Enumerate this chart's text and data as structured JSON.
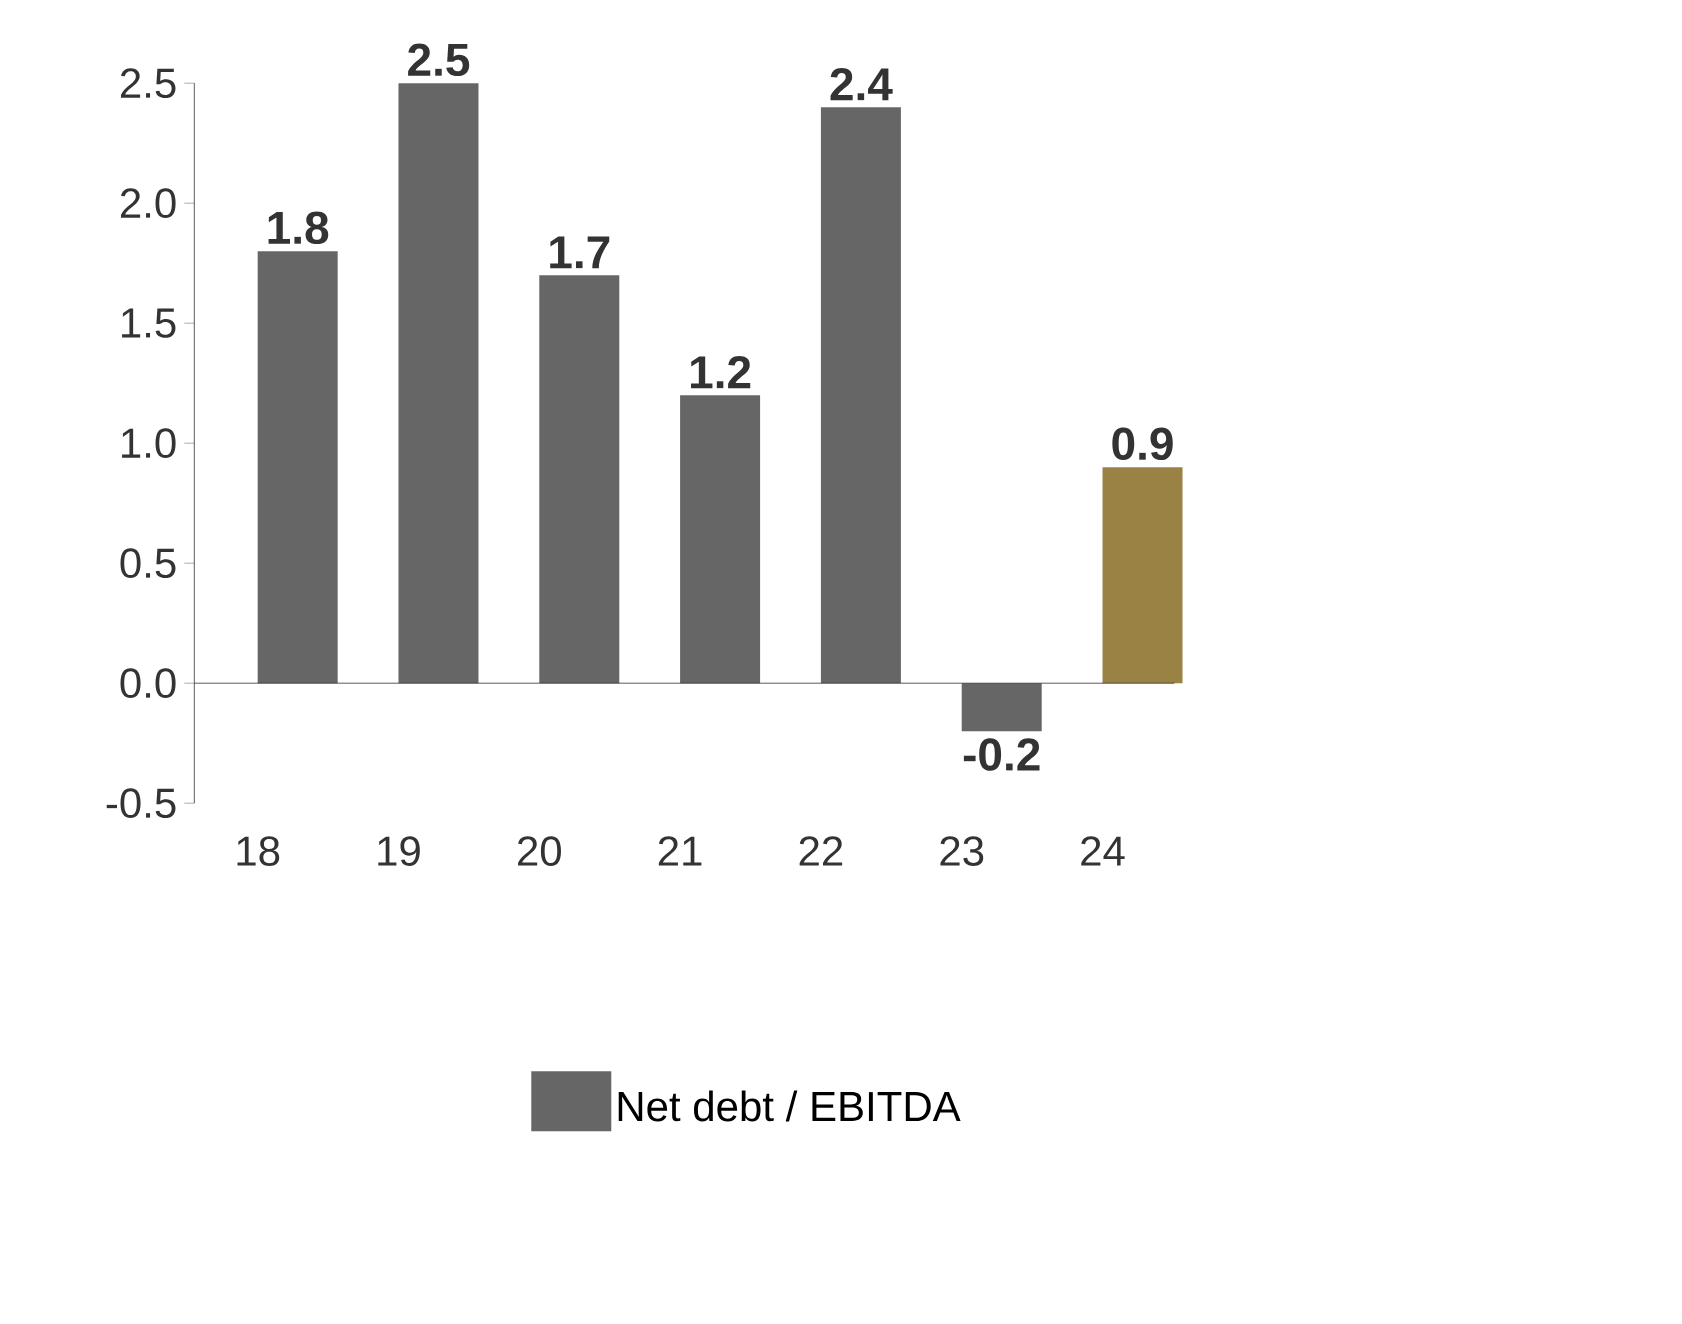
{
  "chart_data": {
    "type": "bar",
    "categories": [
      "18",
      "19",
      "20",
      "21",
      "22",
      "23",
      "24"
    ],
    "series": [
      {
        "name": "Net debt / EBITDA",
        "color": "#666666",
        "colors": [
          "#666666",
          "#666666",
          "#666666",
          "#666666",
          "#666666",
          "#666666",
          "#9a8144"
        ],
        "values": [
          1.8,
          2.5,
          1.7,
          1.2,
          2.4,
          -0.2,
          0.9
        ]
      }
    ],
    "ylim": [
      -0.5,
      2.5
    ],
    "yticks": [
      {
        "value": -0.5,
        "label": "-0.5"
      },
      {
        "value": 0,
        "label": "0.0"
      },
      {
        "value": 0.5,
        "label": "0.5"
      },
      {
        "value": 1,
        "label": "1.0"
      },
      {
        "value": 1.5,
        "label": "1.5"
      },
      {
        "value": 2,
        "label": "2.0"
      },
      {
        "value": 2.5,
        "label": "2.5"
      }
    ],
    "data_labels": true,
    "legend": "bottom"
  }
}
